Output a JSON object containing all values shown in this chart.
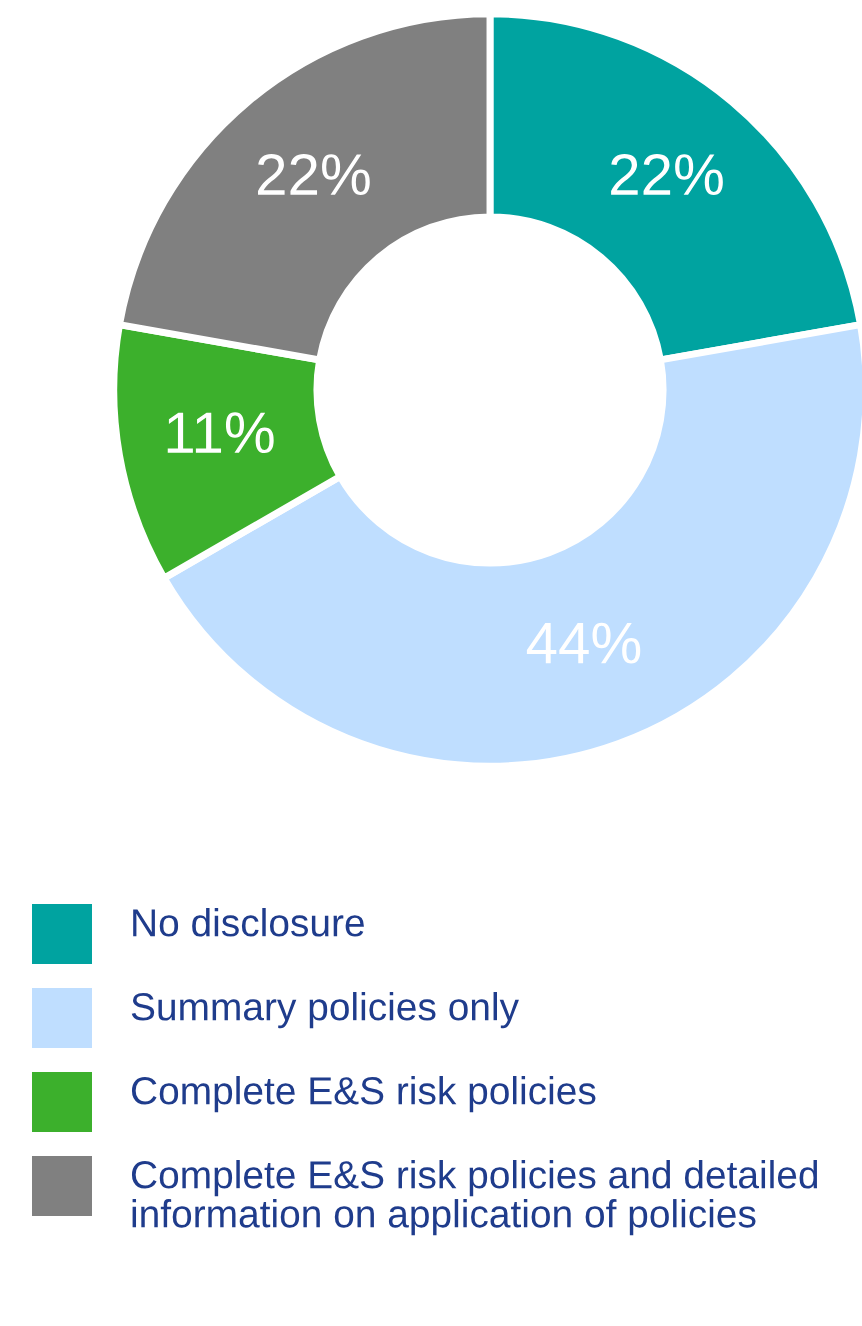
{
  "chart_data": {
    "type": "donut",
    "categories": [
      "No disclosure",
      "Summary policies only",
      "Complete E&S risk policies",
      "Complete E&S risk policies and detailed information on application of policies"
    ],
    "values": [
      22,
      44,
      11,
      22
    ],
    "colors": [
      "#00a3a0",
      "#bfdeff",
      "#3cb02c",
      "#808080"
    ],
    "value_labels": [
      "22%",
      "44%",
      "11%",
      "22%"
    ],
    "legend": "bottom"
  }
}
